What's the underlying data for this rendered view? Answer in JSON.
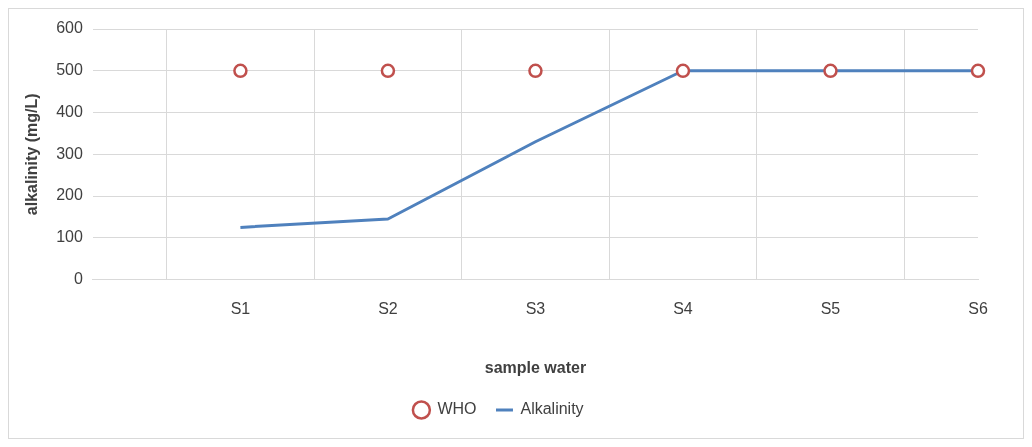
{
  "chart_data": {
    "type": "line",
    "xlabel": "sample water",
    "ylabel": "alkalinity (mg/L)",
    "categories": [
      null,
      "S1",
      "S2",
      "S3",
      "S4",
      "S5",
      "S6"
    ],
    "series": [
      {
        "name": "WHO",
        "type": "scatter",
        "color": "#c0504d",
        "marker": "circle",
        "values": [
          null,
          500,
          500,
          500,
          500,
          500,
          500
        ]
      },
      {
        "name": "Alkalinity",
        "color": "#4f81bd",
        "marker": "none",
        "values": [
          null,
          125,
          145,
          330,
          500,
          500,
          500
        ]
      }
    ],
    "ylim": [
      0,
      600
    ],
    "yticks": [
      0,
      100,
      200,
      300,
      400,
      500,
      600
    ],
    "grid": true,
    "legend": "bottom"
  }
}
